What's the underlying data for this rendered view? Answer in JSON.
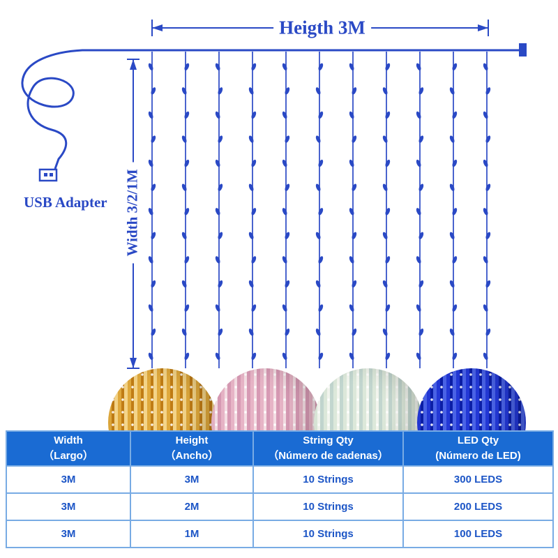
{
  "colors": {
    "diagram_blue": "#2a49c5",
    "table_header_bg": "#1a6bd3",
    "table_header_text": "#ffffff",
    "table_cell_text": "#1c55c6",
    "table_border": "#78abe4"
  },
  "diagram": {
    "height_label": "Heigth 3M",
    "width_label": "Width 3/2/1M",
    "usb_label": "USB Adapter",
    "string_count": 11,
    "leds_per_string": 13
  },
  "product_photos": [
    {
      "name": "warm-white-curtain",
      "colors": [
        "#e0a93c",
        "#c07c15",
        "#f4d488"
      ]
    },
    {
      "name": "pink-curtain",
      "colors": [
        "#e7b4c6",
        "#f4dde3",
        "#d79ab4"
      ]
    },
    {
      "name": "white-multicolor-curtain",
      "colors": [
        "#dce8da",
        "#f2f5ee",
        "#c2d6cf"
      ]
    },
    {
      "name": "blue-curtain",
      "colors": [
        "#2338d6",
        "#0b1ea6",
        "#4a63e6"
      ]
    }
  ],
  "table": {
    "headers": [
      {
        "line1": "Width",
        "line2": "（Largo）"
      },
      {
        "line1": "Height",
        "line2": "（Ancho）"
      },
      {
        "line1": "String Qty",
        "line2": "（Número de cadenas）"
      },
      {
        "line1": "LED Qty",
        "line2": "(Número de LED)"
      }
    ],
    "rows": [
      [
        "3M",
        "3M",
        "10 Strings",
        "300 LEDS"
      ],
      [
        "3M",
        "2M",
        "10 Strings",
        "200 LEDS"
      ],
      [
        "3M",
        "1M",
        "10 Strings",
        "100 LEDS"
      ]
    ]
  }
}
